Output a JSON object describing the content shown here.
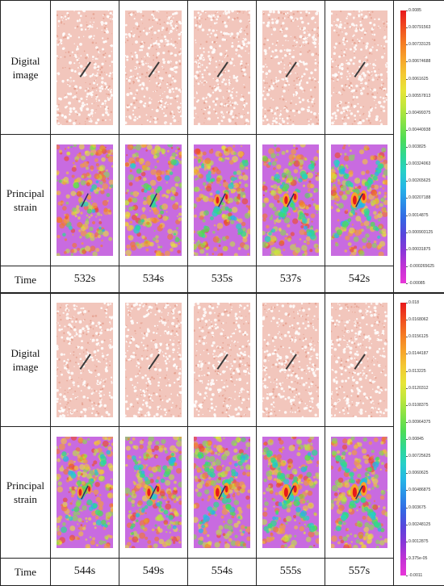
{
  "panels": [
    {
      "rows": {
        "digital_label": "Digital image",
        "strain_label": "Principal strain",
        "time_label": "Time"
      },
      "times": [
        "532s",
        "534s",
        "535s",
        "537s",
        "542s"
      ],
      "strain_level": [
        0.15,
        0.35,
        0.55,
        0.7,
        0.85
      ],
      "colorbar_ticks": [
        "0.0085",
        "0.00791563",
        "0.00733125",
        "0.00674688",
        "0.0061625",
        "0.00557813",
        "0.00499375",
        "0.00440938",
        "0.003825",
        "0.00324063",
        "0.00265625",
        "0.00207188",
        "0.0014875",
        "0.000903125",
        "0.00031875",
        "-0.000265625",
        "-0.00085"
      ]
    },
    {
      "rows": {
        "digital_label": "Digital image",
        "strain_label": "Principal strain",
        "time_label": "Time"
      },
      "times": [
        "544s",
        "549s",
        "554s",
        "555s",
        "557s"
      ],
      "strain_level": [
        0.55,
        0.65,
        0.8,
        0.9,
        0.95
      ],
      "colorbar_ticks": [
        "0.018",
        "0.0168062",
        "0.0156125",
        "0.0144187",
        "0.013225",
        "0.0120312",
        "0.0108375",
        "0.00964375",
        "0.00845",
        "0.00725625",
        "0.0060625",
        "0.00486875",
        "0.003675",
        "0.00248125",
        "0.0012875",
        "9.375e-05",
        "-0.0011"
      ]
    }
  ],
  "colorbar_colors": [
    "#e8181c",
    "#f04a1e",
    "#f57a22",
    "#f7a32a",
    "#f3c932",
    "#e7e537",
    "#bfe63c",
    "#86e245",
    "#4fdc55",
    "#2fd891",
    "#27d0c6",
    "#25b7e6",
    "#2a8ee8",
    "#3565e3",
    "#5a44dc",
    "#8a36d8",
    "#c332d6",
    "#e836d8"
  ],
  "colors": {
    "background_pink": "#f2c6bc",
    "crack": "#3a3a3a",
    "strain_base": "#c86be0",
    "strain_high": "#e8181c"
  }
}
